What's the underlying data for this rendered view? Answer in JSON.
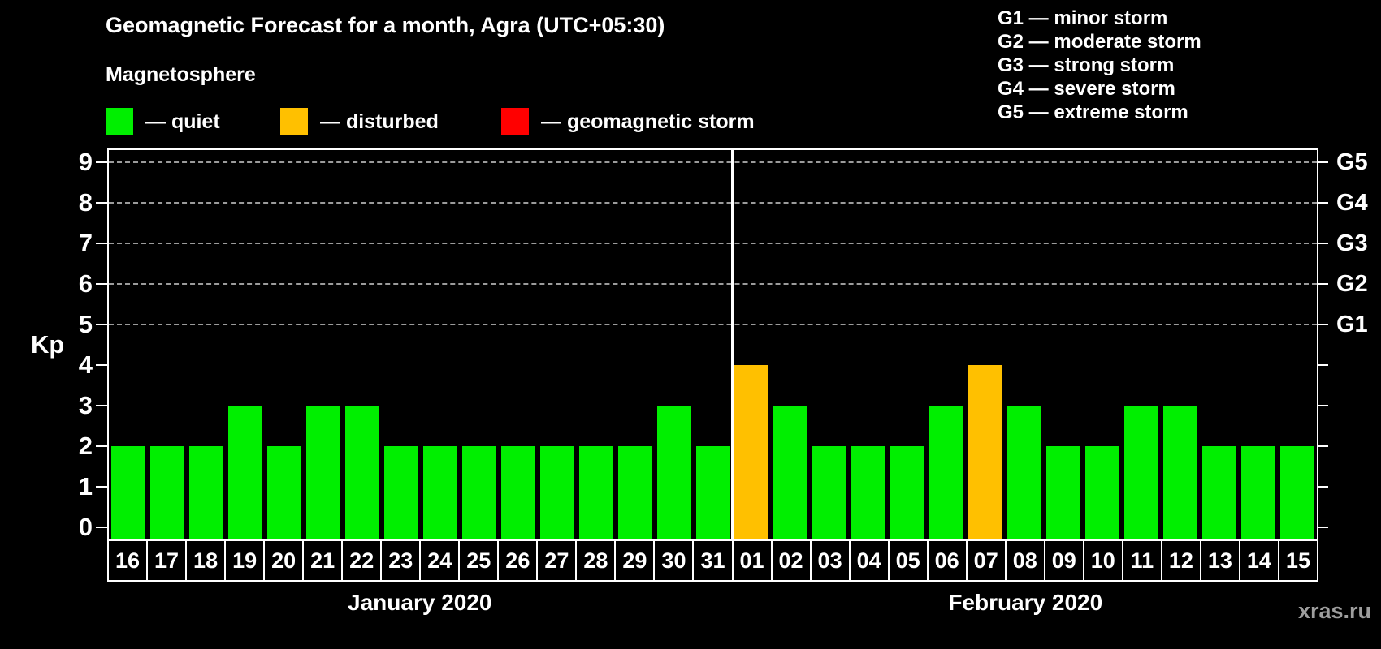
{
  "title": "Geomagnetic Forecast for a month, Agra (UTC+05:30)",
  "watermark": "xras.ru",
  "legend": {
    "heading": "Magnetosphere",
    "items": [
      {
        "key": "quiet",
        "label": "— quiet",
        "color": "#00ef00"
      },
      {
        "key": "disturbed",
        "label": "— disturbed",
        "color": "#ffc000"
      },
      {
        "key": "storm",
        "label": "— geomagnetic storm",
        "color": "#ff0000"
      }
    ]
  },
  "g_scale": [
    "G1 — minor storm",
    "G2 — moderate storm",
    "G3 — strong storm",
    "G4 — severe storm",
    "G5 — extreme storm"
  ],
  "chart_data": {
    "type": "bar",
    "title": "Geomagnetic Forecast for a month, Agra (UTC+05:30)",
    "ylabel": "Kp",
    "xlabel": "",
    "ylim": [
      0,
      9.4
    ],
    "yticks": [
      0,
      1,
      2,
      3,
      4,
      5,
      6,
      7,
      8,
      9
    ],
    "grid_levels": [
      5,
      6,
      7,
      8,
      9
    ],
    "grid_style": "dashed",
    "legend_position": "top",
    "right_axis": [
      {
        "kp": 5,
        "label": "G1"
      },
      {
        "kp": 6,
        "label": "G2"
      },
      {
        "kp": 7,
        "label": "G3"
      },
      {
        "kp": 8,
        "label": "G4"
      },
      {
        "kp": 9,
        "label": "G5"
      }
    ],
    "status_colors": {
      "quiet": "#00ef00",
      "disturbed": "#ffc000",
      "storm": "#ff0000"
    },
    "months": [
      {
        "label": "January 2020",
        "days": [
          "16",
          "17",
          "18",
          "19",
          "20",
          "21",
          "22",
          "23",
          "24",
          "25",
          "26",
          "27",
          "28",
          "29",
          "30",
          "31"
        ],
        "values": [
          2,
          2,
          2,
          3,
          2,
          3,
          3,
          2,
          2,
          2,
          2,
          2,
          2,
          2,
          3,
          2
        ],
        "status": [
          "quiet",
          "quiet",
          "quiet",
          "quiet",
          "quiet",
          "quiet",
          "quiet",
          "quiet",
          "quiet",
          "quiet",
          "quiet",
          "quiet",
          "quiet",
          "quiet",
          "quiet",
          "quiet"
        ]
      },
      {
        "label": "February 2020",
        "days": [
          "01",
          "02",
          "03",
          "04",
          "05",
          "06",
          "07",
          "08",
          "09",
          "10",
          "11",
          "12",
          "13",
          "14",
          "15"
        ],
        "values": [
          4,
          3,
          2,
          2,
          2,
          3,
          4,
          3,
          2,
          2,
          3,
          3,
          2,
          2,
          2
        ],
        "status": [
          "disturbed",
          "quiet",
          "quiet",
          "quiet",
          "quiet",
          "quiet",
          "disturbed",
          "quiet",
          "quiet",
          "quiet",
          "quiet",
          "quiet",
          "quiet",
          "quiet",
          "quiet"
        ]
      }
    ]
  }
}
